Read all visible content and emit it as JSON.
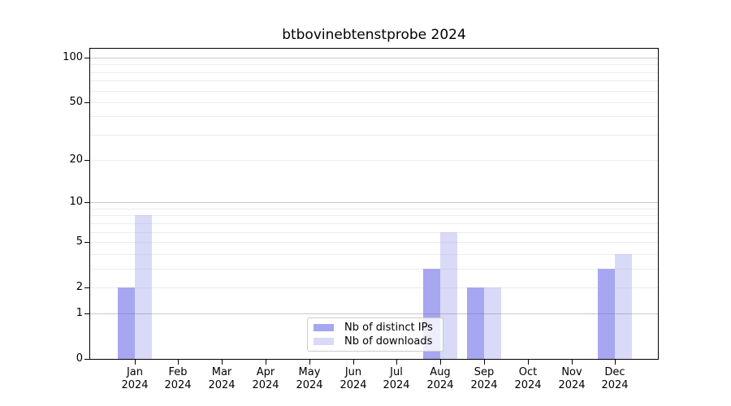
{
  "chart_data": {
    "type": "bar",
    "title": "btbovinebtenstprobe 2024",
    "categories": [
      "Jan",
      "Feb",
      "Mar",
      "Apr",
      "May",
      "Jun",
      "Jul",
      "Aug",
      "Sep",
      "Oct",
      "Nov",
      "Dec"
    ],
    "x_tick_year": "2024",
    "series": [
      {
        "name": "Nb of distinct IPs",
        "color": "#a6a6f1",
        "values": [
          2,
          0,
          0,
          0,
          0,
          0,
          0,
          3,
          2,
          0,
          0,
          3
        ]
      },
      {
        "name": "Nb of downloads",
        "color": "#d9d9f8",
        "values": [
          8,
          0,
          0,
          0,
          0,
          0,
          0,
          6,
          2,
          0,
          0,
          4
        ]
      }
    ],
    "yscale": "log1p",
    "ylim": [
      0,
      115
    ],
    "yticks": [
      0,
      1,
      2,
      5,
      10,
      20,
      50,
      100
    ],
    "gridlines": {
      "major": [
        1,
        10,
        100
      ],
      "minor": [
        2,
        3,
        4,
        5,
        6,
        7,
        8,
        9,
        20,
        30,
        40,
        50,
        60,
        70,
        80,
        90
      ]
    },
    "grid": true,
    "legend_position": "lower center"
  }
}
